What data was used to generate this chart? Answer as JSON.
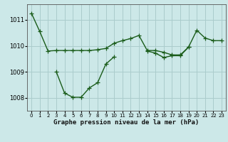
{
  "xlabel": "Graphe pression niveau de la mer (hPa)",
  "background_color": "#cce8e8",
  "grid_color": "#aacccc",
  "line_color": "#1a5c1a",
  "x": [
    0,
    1,
    2,
    3,
    4,
    5,
    6,
    7,
    8,
    9,
    10,
    11,
    12,
    13,
    14,
    15,
    16,
    17,
    18,
    19,
    20,
    21,
    22,
    23
  ],
  "line1": [
    1011.25,
    1010.55,
    1009.8,
    1009.82,
    1009.82,
    1009.82,
    1009.82,
    1009.82,
    1009.85,
    1009.9,
    1010.1,
    1010.2,
    1010.28,
    1010.4,
    1009.82,
    1009.82,
    1009.75,
    1009.65,
    1009.65,
    1009.95,
    1010.6,
    1010.3,
    1010.2,
    1010.2
  ],
  "line2": [
    null,
    null,
    null,
    1009.0,
    1008.18,
    1008.02,
    1008.02,
    1008.38,
    1008.58,
    1009.3,
    1009.58,
    null,
    null,
    null,
    1009.8,
    1009.72,
    1009.55,
    1009.62,
    1009.62,
    1009.95,
    null,
    null,
    null,
    null
  ],
  "ylim": [
    1007.5,
    1011.6
  ],
  "yticks": [
    1008,
    1009,
    1010,
    1011
  ],
  "xticks": [
    0,
    1,
    2,
    3,
    4,
    5,
    6,
    7,
    8,
    9,
    10,
    11,
    12,
    13,
    14,
    15,
    16,
    17,
    18,
    19,
    20,
    21,
    22,
    23
  ],
  "marker": "+",
  "markersize": 4,
  "linewidth": 1.0
}
